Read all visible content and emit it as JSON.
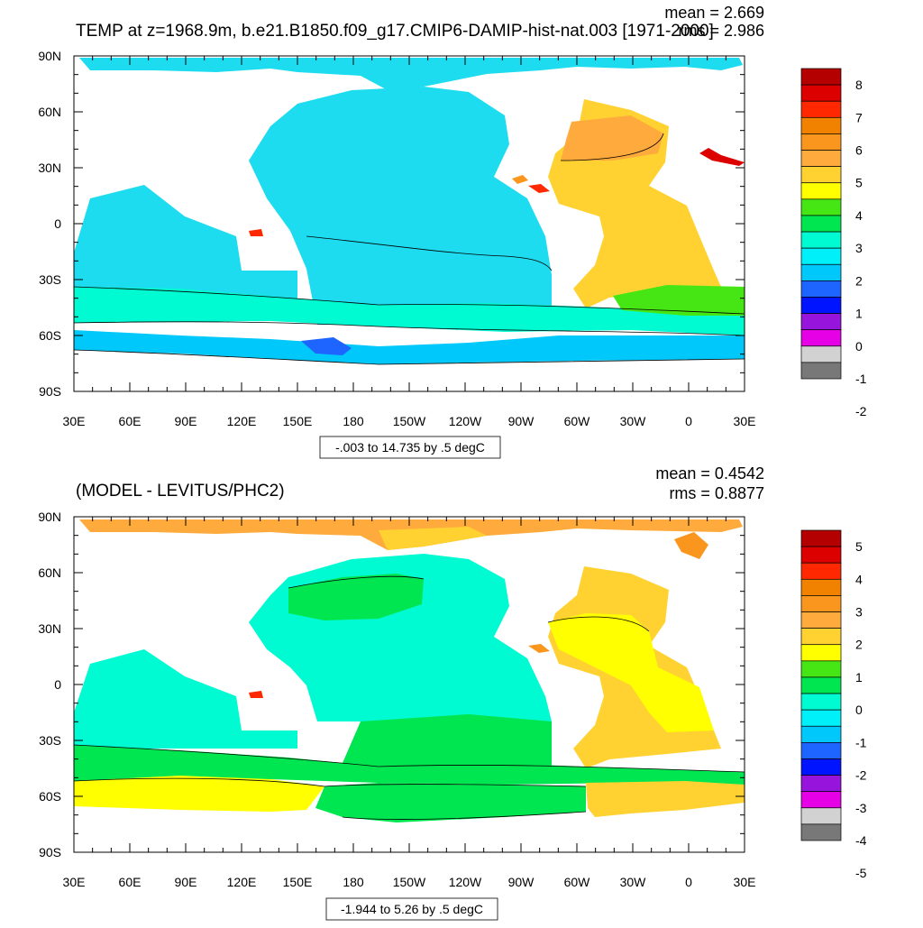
{
  "panels": [
    {
      "title": "TEMP at z=1968.9m, b.e21.B1850.f09_g17.CMIP6-DAMIP-hist-nat.003 [1971-2000]",
      "mean_text": "mean = 2.669",
      "rms_text": "rms = 2.986",
      "range_text": "-.003 to 14.735 by .5 degC",
      "colorbar": {
        "labels": [
          "8",
          "7",
          "6",
          "5",
          "4",
          "3",
          "2",
          "1",
          "0",
          "-1",
          "-2"
        ],
        "colors": [
          "#B40000",
          "#DC0000",
          "#FF2800",
          "#F08200",
          "#FA961E",
          "#FFAA3C",
          "#FFD232",
          "#FFFF00",
          "#46E614",
          "#00E650",
          "#00FAD2",
          "#00F0FA",
          "#00C8FA",
          "#1E64FF",
          "#0014FF",
          "#9614DC",
          "#E600E6",
          "#D2D2D2",
          "#787878"
        ]
      },
      "ocean_fill": "#1EDCF0"
    },
    {
      "title": "(MODEL - LEVITUS/PHC2)",
      "mean_text": "mean = 0.4542",
      "rms_text": "rms = 0.8877",
      "range_text": "-1.944 to 5.26 by .5 degC",
      "colorbar": {
        "labels": [
          "5",
          "4",
          "3",
          "2",
          "1",
          "0",
          "-1",
          "-2",
          "-3",
          "-4",
          "-5"
        ],
        "colors": [
          "#B40000",
          "#DC0000",
          "#FF2800",
          "#F08200",
          "#FA961E",
          "#FFAA3C",
          "#FFD232",
          "#FFFF00",
          "#46E614",
          "#00E650",
          "#00FAD2",
          "#00F0FA",
          "#00C8FA",
          "#1E64FF",
          "#0014FF",
          "#9614DC",
          "#E600E6",
          "#D2D2D2",
          "#787878"
        ]
      },
      "ocean_fill": "#00FAD2"
    }
  ],
  "axes": {
    "lat_labels": [
      "90N",
      "60N",
      "30N",
      "0",
      "30S",
      "60S",
      "90S"
    ],
    "lon_labels": [
      "30E",
      "60E",
      "90E",
      "120E",
      "150E",
      "180",
      "150W",
      "120W",
      "90W",
      "60W",
      "30W",
      "0",
      "30E"
    ]
  }
}
